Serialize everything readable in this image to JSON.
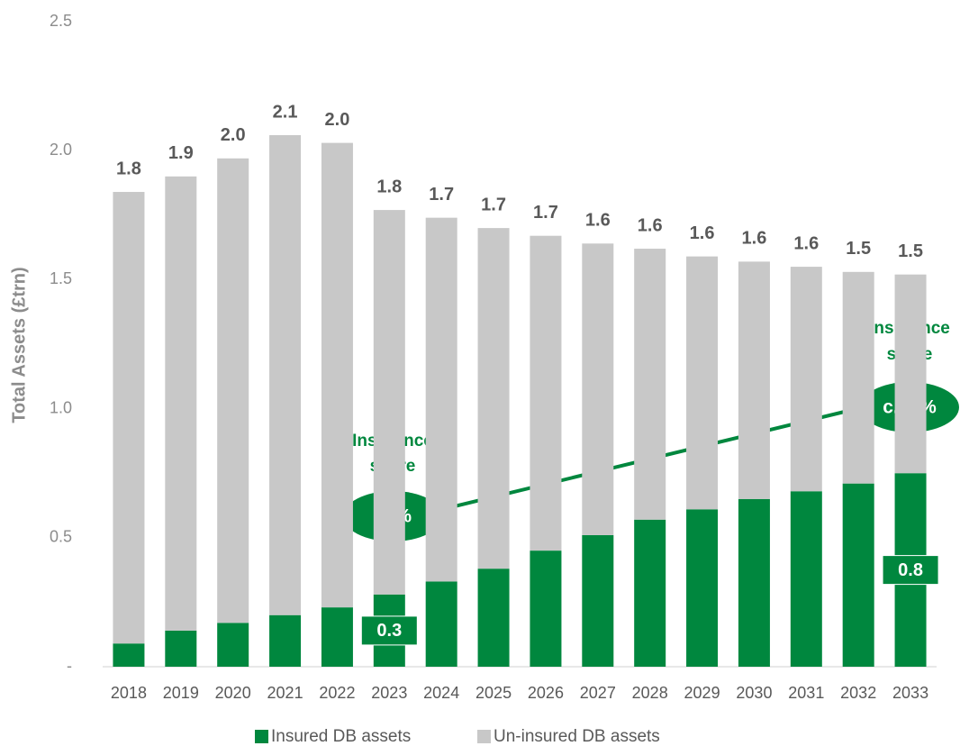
{
  "chart_data": {
    "type": "stacked_bar",
    "y_axis_label": "Total Assets (£trn)",
    "categories": [
      "2018",
      "2019",
      "2020",
      "2021",
      "2022",
      "2023",
      "2024",
      "2025",
      "2026",
      "2027",
      "2028",
      "2029",
      "2030",
      "2031",
      "2032",
      "2033"
    ],
    "series": [
      {
        "name": "Insured DB assets",
        "color": "#00873e",
        "values": [
          0.09,
          0.14,
          0.17,
          0.2,
          0.23,
          0.28,
          0.33,
          0.38,
          0.45,
          0.51,
          0.57,
          0.61,
          0.65,
          0.68,
          0.71,
          0.75
        ],
        "value_labels": [
          null,
          null,
          null,
          null,
          null,
          "0.3",
          null,
          null,
          null,
          null,
          null,
          null,
          null,
          null,
          null,
          "0.8"
        ]
      },
      {
        "name": "Un-insured DB assets",
        "color": "#c8c8c8",
        "values": [
          1.75,
          1.76,
          1.8,
          1.86,
          1.8,
          1.49,
          1.41,
          1.32,
          1.22,
          1.13,
          1.05,
          0.98,
          0.92,
          0.87,
          0.82,
          0.77
        ]
      }
    ],
    "total_labels": [
      "1.8",
      "1.9",
      "2.0",
      "2.1",
      "2.0",
      "1.8",
      "1.7",
      "1.7",
      "1.7",
      "1.6",
      "1.6",
      "1.6",
      "1.6",
      "1.6",
      "1.5",
      "1.5"
    ],
    "ylim": [
      0,
      2.5
    ],
    "yticks": [
      {
        "value": 0,
        "label": "-"
      },
      0.5,
      {
        "value": 1,
        "label": "1.0"
      },
      1.5,
      {
        "value": 2,
        "label": "2.0"
      },
      2.5
    ],
    "grid": false,
    "legend": "bottom",
    "annotations": [
      {
        "title": [
          "Insurance",
          "share"
        ],
        "value": "16%"
      },
      {
        "title": [
          "Insurance",
          "share"
        ],
        "value": "c.50%"
      }
    ]
  }
}
